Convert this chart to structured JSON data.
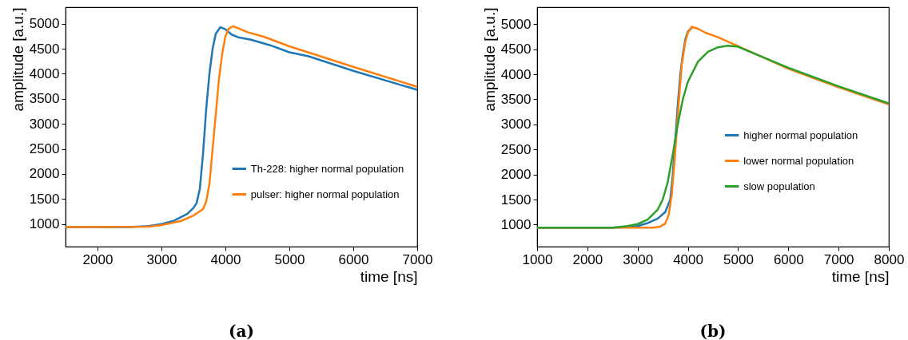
{
  "chart_data": [
    {
      "type": "line",
      "title": "(a)",
      "xlabel": "time [ns]",
      "ylabel": "amplitude [a.u.]",
      "xlim": [
        1500,
        7000
      ],
      "xticks": [
        2000,
        3000,
        4000,
        5000,
        6000,
        7000
      ],
      "ylim": [
        550,
        5330
      ],
      "yticks": [
        1000,
        1500,
        2000,
        2500,
        3000,
        3500,
        4000,
        4500,
        5000
      ],
      "grid": false,
      "legend": "bottom right",
      "marker": "none",
      "line_style": "solid",
      "series": [
        {
          "name": "Th-228: higher normal population",
          "color": "#1f77b4",
          "x": [
            1500,
            2500,
            2800,
            3000,
            3200,
            3400,
            3500,
            3550,
            3600,
            3650,
            3700,
            3750,
            3800,
            3850,
            3920,
            4000,
            4100,
            4200,
            4400,
            4700,
            5000,
            5300,
            6000,
            7000
          ],
          "values": [
            940,
            940,
            960,
            1000,
            1070,
            1200,
            1320,
            1420,
            1700,
            2400,
            3300,
            4000,
            4500,
            4800,
            4930,
            4890,
            4780,
            4730,
            4680,
            4570,
            4430,
            4350,
            4060,
            3680
          ]
        },
        {
          "name": "pulser: higher normal population",
          "color": "#ff7f0e",
          "x": [
            1500,
            2800,
            3000,
            3300,
            3500,
            3650,
            3700,
            3750,
            3800,
            3850,
            3900,
            3950,
            4000,
            4050,
            4120,
            4200,
            4350,
            4600,
            5000,
            6000,
            7000
          ],
          "values": [
            940,
            950,
            980,
            1060,
            1170,
            1300,
            1450,
            1800,
            2500,
            3200,
            3900,
            4400,
            4750,
            4900,
            4950,
            4910,
            4830,
            4740,
            4550,
            4140,
            3740
          ]
        }
      ]
    },
    {
      "type": "line",
      "title": "(b)",
      "xlabel": "time [ns]",
      "ylabel": "amplitude [a.u.]",
      "xlim": [
        1000,
        8000
      ],
      "xticks": [
        1000,
        2000,
        3000,
        4000,
        5000,
        6000,
        7000,
        8000
      ],
      "ylim": [
        560,
        5340
      ],
      "yticks": [
        1000,
        1500,
        2000,
        2500,
        3000,
        3500,
        4000,
        4500,
        5000
      ],
      "grid": false,
      "legend": "right",
      "marker": "none",
      "line_style": "solid",
      "series": [
        {
          "name": "higher normal population",
          "color": "#1f77b4",
          "x": [
            1000,
            2500,
            2800,
            3000,
            3200,
            3400,
            3550,
            3650,
            3700,
            3750,
            3800,
            3850,
            3900,
            3950,
            4000,
            4100
          ],
          "values": [
            940,
            940,
            950,
            970,
            1030,
            1120,
            1250,
            1500,
            2000,
            2700,
            3400,
            4000,
            4400,
            4700,
            4850,
            4950
          ]
        },
        {
          "name": "lower normal population",
          "color": "#ff7f0e",
          "x": [
            1000,
            3300,
            3450,
            3550,
            3620,
            3680,
            3730,
            3780,
            3830,
            3880,
            3950,
            4000,
            4080,
            4200,
            4350,
            4600,
            5000,
            6000,
            7000,
            8000
          ],
          "values": [
            940,
            940,
            960,
            1020,
            1200,
            1600,
            2200,
            2900,
            3600,
            4200,
            4650,
            4830,
            4950,
            4910,
            4830,
            4740,
            4560,
            4110,
            3740,
            3400
          ]
        },
        {
          "name": "slow population",
          "color": "#2ca02c",
          "x": [
            1000,
            2500,
            2800,
            3000,
            3200,
            3400,
            3500,
            3600,
            3700,
            3800,
            3900,
            4000,
            4200,
            4400,
            4600,
            4800,
            5000,
            6000,
            7000,
            8000
          ],
          "values": [
            940,
            940,
            970,
            1010,
            1100,
            1300,
            1500,
            1850,
            2400,
            3000,
            3500,
            3850,
            4250,
            4450,
            4540,
            4570,
            4550,
            4130,
            3760,
            3420
          ]
        }
      ]
    }
  ]
}
